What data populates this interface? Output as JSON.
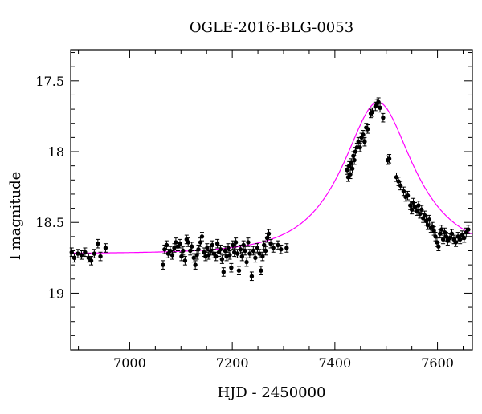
{
  "chart_data": {
    "type": "scatter",
    "title": "OGLE-2016-BLG-0053",
    "xlabel": "HJD - 2450000",
    "ylabel": "I magnitude",
    "xlim": [
      6885,
      7668
    ],
    "ylim": [
      19.4,
      17.28
    ],
    "y_inverted": true,
    "xticks_major": [
      7000,
      7200,
      7400,
      7600
    ],
    "yticks_major": [
      17.5,
      18,
      18.5,
      19
    ],
    "xtick_minor_step": 50,
    "ytick_minor_step": 0.1,
    "grid": false,
    "point_color": "#000000",
    "model_color": "#ff00ff",
    "model": {
      "name": "",
      "t0": 7484,
      "u0": 0.53,
      "tE": 115,
      "baseline_mag": 18.72
    },
    "series": [
      {
        "name": "",
        "points": [
          [
            6887,
            18.71,
            0.03
          ],
          [
            6892,
            18.75,
            0.03
          ],
          [
            6899,
            18.72,
            0.03
          ],
          [
            6906,
            18.73,
            0.03
          ],
          [
            6913,
            18.71,
            0.03
          ],
          [
            6920,
            18.75,
            0.03
          ],
          [
            6925,
            18.77,
            0.03
          ],
          [
            6931,
            18.72,
            0.03
          ],
          [
            6938,
            18.65,
            0.03
          ],
          [
            6943,
            18.74,
            0.03
          ],
          [
            6953,
            18.68,
            0.03
          ],
          [
            7065,
            18.8,
            0.03
          ],
          [
            7068,
            18.69,
            0.03
          ],
          [
            7072,
            18.66,
            0.03
          ],
          [
            7075,
            18.72,
            0.03
          ],
          [
            7079,
            18.7,
            0.03
          ],
          [
            7083,
            18.73,
            0.03
          ],
          [
            7087,
            18.68,
            0.03
          ],
          [
            7090,
            18.64,
            0.03
          ],
          [
            7094,
            18.67,
            0.03
          ],
          [
            7098,
            18.65,
            0.03
          ],
          [
            7101,
            18.74,
            0.03
          ],
          [
            7104,
            18.7,
            0.03
          ],
          [
            7108,
            18.77,
            0.03
          ],
          [
            7111,
            18.62,
            0.03
          ],
          [
            7114,
            18.64,
            0.03
          ],
          [
            7118,
            18.7,
            0.03
          ],
          [
            7121,
            18.67,
            0.03
          ],
          [
            7125,
            18.75,
            0.03
          ],
          [
            7128,
            18.8,
            0.03
          ],
          [
            7131,
            18.73,
            0.03
          ],
          [
            7134,
            18.69,
            0.03
          ],
          [
            7138,
            18.64,
            0.03
          ],
          [
            7141,
            18.6,
            0.03
          ],
          [
            7145,
            18.71,
            0.03
          ],
          [
            7148,
            18.74,
            0.03
          ],
          [
            7151,
            18.68,
            0.03
          ],
          [
            7154,
            18.73,
            0.03
          ],
          [
            7158,
            18.7,
            0.03
          ],
          [
            7161,
            18.66,
            0.03
          ],
          [
            7164,
            18.72,
            0.03
          ],
          [
            7168,
            18.74,
            0.03
          ],
          [
            7171,
            18.65,
            0.03
          ],
          [
            7174,
            18.71,
            0.03
          ],
          [
            7177,
            18.69,
            0.03
          ],
          [
            7180,
            18.76,
            0.03
          ],
          [
            7183,
            18.85,
            0.03
          ],
          [
            7186,
            18.7,
            0.03
          ],
          [
            7189,
            18.74,
            0.03
          ],
          [
            7192,
            18.68,
            0.03
          ],
          [
            7195,
            18.73,
            0.03
          ],
          [
            7198,
            18.82,
            0.03
          ],
          [
            7201,
            18.66,
            0.03
          ],
          [
            7204,
            18.71,
            0.03
          ],
          [
            7207,
            18.64,
            0.03
          ],
          [
            7210,
            18.72,
            0.03
          ],
          [
            7213,
            18.84,
            0.03
          ],
          [
            7216,
            18.69,
            0.03
          ],
          [
            7219,
            18.74,
            0.03
          ],
          [
            7222,
            18.66,
            0.03
          ],
          [
            7225,
            18.7,
            0.03
          ],
          [
            7228,
            18.78,
            0.03
          ],
          [
            7231,
            18.64,
            0.03
          ],
          [
            7234,
            18.72,
            0.03
          ],
          [
            7238,
            18.88,
            0.03
          ],
          [
            7241,
            18.7,
            0.03
          ],
          [
            7245,
            18.75,
            0.03
          ],
          [
            7249,
            18.68,
            0.03
          ],
          [
            7253,
            18.72,
            0.03
          ],
          [
            7256,
            18.84,
            0.03
          ],
          [
            7259,
            18.74,
            0.03
          ],
          [
            7262,
            18.66,
            0.03
          ],
          [
            7265,
            18.7,
            0.03
          ],
          [
            7268,
            18.61,
            0.03
          ],
          [
            7271,
            18.58,
            0.03
          ],
          [
            7275,
            18.65,
            0.03
          ],
          [
            7280,
            18.68,
            0.03
          ],
          [
            7289,
            18.66,
            0.03
          ],
          [
            7295,
            18.69,
            0.03
          ],
          [
            7306,
            18.68,
            0.03
          ],
          [
            7424,
            18.13,
            0.03
          ],
          [
            7426,
            18.18,
            0.03
          ],
          [
            7428,
            18.1,
            0.03
          ],
          [
            7430,
            18.16,
            0.03
          ],
          [
            7432,
            18.08,
            0.03
          ],
          [
            7434,
            18.12,
            0.03
          ],
          [
            7436,
            18.03,
            0.03
          ],
          [
            7438,
            18.06,
            0.03
          ],
          [
            7440,
            18.0,
            0.03
          ],
          [
            7443,
            17.97,
            0.03
          ],
          [
            7446,
            17.93,
            0.03
          ],
          [
            7449,
            17.97,
            0.03
          ],
          [
            7452,
            17.9,
            0.03
          ],
          [
            7455,
            17.88,
            0.03
          ],
          [
            7458,
            17.93,
            0.03
          ],
          [
            7461,
            17.83,
            0.03
          ],
          [
            7464,
            17.84,
            0.03
          ],
          [
            7470,
            17.73,
            0.03
          ],
          [
            7473,
            17.72,
            0.03
          ],
          [
            7479,
            17.68,
            0.03
          ],
          [
            7482,
            17.66,
            0.03
          ],
          [
            7485,
            17.65,
            0.03
          ],
          [
            7488,
            17.69,
            0.03
          ],
          [
            7494,
            17.76,
            0.03
          ],
          [
            7503,
            18.06,
            0.03
          ],
          [
            7506,
            18.05,
            0.03
          ],
          [
            7520,
            18.18,
            0.03
          ],
          [
            7524,
            18.21,
            0.03
          ],
          [
            7528,
            18.24,
            0.03
          ],
          [
            7534,
            18.28,
            0.03
          ],
          [
            7538,
            18.32,
            0.03
          ],
          [
            7542,
            18.31,
            0.03
          ],
          [
            7547,
            18.38,
            0.03
          ],
          [
            7550,
            18.41,
            0.03
          ],
          [
            7553,
            18.36,
            0.03
          ],
          [
            7556,
            18.39,
            0.03
          ],
          [
            7560,
            18.42,
            0.03
          ],
          [
            7563,
            18.38,
            0.03
          ],
          [
            7566,
            18.44,
            0.03
          ],
          [
            7569,
            18.41,
            0.03
          ],
          [
            7572,
            18.47,
            0.03
          ],
          [
            7575,
            18.45,
            0.03
          ],
          [
            7578,
            18.49,
            0.03
          ],
          [
            7581,
            18.52,
            0.03
          ],
          [
            7584,
            18.48,
            0.03
          ],
          [
            7587,
            18.54,
            0.03
          ],
          [
            7590,
            18.53,
            0.03
          ],
          [
            7593,
            18.56,
            0.03
          ],
          [
            7596,
            18.6,
            0.03
          ],
          [
            7599,
            18.64,
            0.03
          ],
          [
            7602,
            18.67,
            0.03
          ],
          [
            7605,
            18.58,
            0.03
          ],
          [
            7608,
            18.55,
            0.03
          ],
          [
            7611,
            18.62,
            0.03
          ],
          [
            7614,
            18.57,
            0.03
          ],
          [
            7617,
            18.6,
            0.03
          ],
          [
            7620,
            18.63,
            0.03
          ],
          [
            7624,
            18.61,
            0.03
          ],
          [
            7628,
            18.58,
            0.03
          ],
          [
            7632,
            18.62,
            0.03
          ],
          [
            7636,
            18.64,
            0.03
          ],
          [
            7640,
            18.6,
            0.03
          ],
          [
            7644,
            18.62,
            0.03
          ],
          [
            7648,
            18.59,
            0.03
          ],
          [
            7652,
            18.61,
            0.03
          ],
          [
            7656,
            18.57,
            0.03
          ],
          [
            7660,
            18.55,
            0.03
          ]
        ]
      }
    ]
  }
}
